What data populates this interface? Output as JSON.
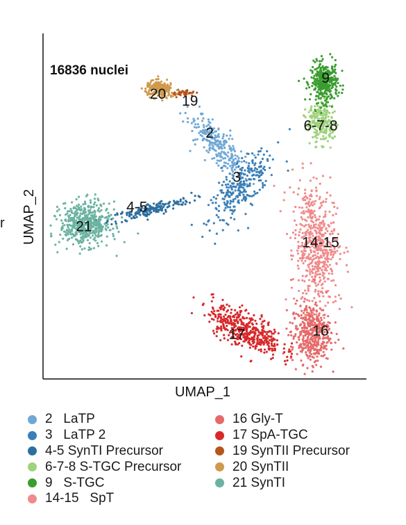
{
  "chart_data": {
    "type": "scatter",
    "annotation": "16836 nuclei",
    "xlabel": "UMAP_1",
    "ylabel": "UMAP_2",
    "ticks": "none",
    "grid": false,
    "legend_position": "bottom",
    "cut_off_left_text": "r",
    "clusters": [
      {
        "id": "2",
        "label": "2",
        "legend": "2   LaTP",
        "color": "#6fa8d6",
        "cx": 0.02,
        "cy": 0.29,
        "sx": 0.45,
        "sy": 1.4,
        "rot": 55,
        "n": 260
      },
      {
        "id": "3",
        "label": "3",
        "legend": "3   LaTP 2",
        "color": "#3a7fb8",
        "cx": 1.0,
        "cy": -0.9,
        "sx": 1.6,
        "sy": 0.55,
        "rot": 35,
        "n": 280
      },
      {
        "id": "4-5",
        "label": "4-5",
        "legend": "4-5 SynTI Precursor",
        "color": "#2d6f9f",
        "cx": -2.7,
        "cy": -1.55,
        "sx": 1.7,
        "sy": 0.18,
        "rot": 10,
        "n": 180
      },
      {
        "id": "6-7-8",
        "label": "6-7-8",
        "legend": "6-7-8 S-TGC Precursor",
        "color": "#9fd27c",
        "cx": 4.2,
        "cy": 0.9,
        "sx": 0.55,
        "sy": 0.6,
        "rot": 20,
        "n": 240
      },
      {
        "id": "9",
        "label": "9",
        "legend": "9   S-TGC",
        "color": "#3a9d2f",
        "cx": 4.35,
        "cy": 2.05,
        "sx": 0.55,
        "sy": 0.55,
        "rot": 0,
        "n": 360
      },
      {
        "id": "14-15",
        "label": "14-15",
        "legend": "14-15   SpT",
        "color": "#f08b8b",
        "cx": 4.0,
        "cy": -2.55,
        "sx": 0.85,
        "sy": 1.8,
        "rot": 8,
        "n": 560
      },
      {
        "id": "16",
        "label": "16",
        "legend": "16 Gly-T",
        "color": "#e66a6a",
        "cx": 3.8,
        "cy": -5.05,
        "sx": 0.8,
        "sy": 0.85,
        "rot": 0,
        "n": 420
      },
      {
        "id": "17",
        "label": "17",
        "legend": "17 SpA-TGC",
        "color": "#d8282b",
        "cx": 1.15,
        "cy": -4.95,
        "sx": 1.55,
        "sy": 0.5,
        "rot": -18,
        "n": 440
      },
      {
        "id": "19",
        "label": "19",
        "legend": "19 SynTII Precursor",
        "color": "#b5561c",
        "cx": -1.35,
        "cy": 1.75,
        "sx": 0.45,
        "sy": 0.1,
        "rot": 0,
        "n": 40
      },
      {
        "id": "20",
        "label": "20",
        "legend": "20 SynTII",
        "color": "#cf9a4c",
        "cx": -2.3,
        "cy": 1.85,
        "sx": 0.6,
        "sy": 0.22,
        "rot": -5,
        "n": 200
      },
      {
        "id": "21",
        "label": "21",
        "legend": "21 SynTI",
        "color": "#6bb3a0",
        "cx": -5.35,
        "cy": -1.95,
        "sx": 1.0,
        "sy": 0.6,
        "rot": 0,
        "n": 520
      }
    ],
    "label_positions": {
      "2": [
        -0.3,
        0.6
      ],
      "3": [
        0.8,
        -0.65
      ],
      "4-5": [
        -3.25,
        -1.5
      ],
      "6-7-8": [
        4.2,
        0.8
      ],
      "9": [
        4.4,
        2.15
      ],
      "14-15": [
        4.2,
        -2.5
      ],
      "16": [
        4.2,
        -5.0
      ],
      "17": [
        0.8,
        -5.1
      ],
      "19": [
        -1.1,
        1.5
      ],
      "20": [
        -2.4,
        1.7
      ],
      "21": [
        -5.4,
        -2.05
      ]
    },
    "xlim": [
      -7,
      6
    ],
    "ylim": [
      -6.3,
      3.4
    ]
  }
}
